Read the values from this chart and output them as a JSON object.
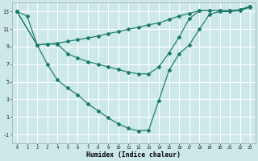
{
  "xlabel": "Humidex (Indice chaleur)",
  "bg_color": "#cce8e8",
  "grid_color": "#ffffff",
  "line_color": "#1a7a6a",
  "xlim": [
    -0.5,
    23.5
  ],
  "ylim": [
    -2.0,
    14.0
  ],
  "xticks": [
    0,
    1,
    2,
    3,
    4,
    5,
    6,
    7,
    8,
    9,
    10,
    11,
    12,
    13,
    14,
    15,
    16,
    17,
    18,
    19,
    20,
    21,
    22,
    23
  ],
  "yticks": [
    -1,
    1,
    3,
    5,
    7,
    9,
    11,
    13
  ],
  "curve_v_x": [
    0,
    1,
    2,
    3,
    4,
    5,
    6,
    7,
    8,
    9,
    10,
    11,
    12,
    13,
    14,
    15,
    16,
    17,
    18,
    19,
    20,
    21,
    22,
    23
  ],
  "curve_v_y": [
    13,
    12.5,
    9.2,
    7.0,
    5.2,
    4.3,
    3.5,
    2.5,
    1.7,
    0.9,
    0.2,
    -0.3,
    -0.6,
    -0.5,
    2.9,
    6.3,
    8.2,
    9.2,
    11.0,
    12.7,
    13.0,
    13.0,
    13.1,
    13.5
  ],
  "curve_top_x": [
    0,
    2,
    3,
    4,
    5,
    6,
    7,
    8,
    9,
    10,
    11,
    12,
    13,
    14,
    15,
    16,
    17,
    18,
    19,
    20,
    21,
    22,
    23
  ],
  "curve_top_y": [
    13,
    9.2,
    9.3,
    9.4,
    9.6,
    9.8,
    10.0,
    10.2,
    10.5,
    10.7,
    11.0,
    11.2,
    11.5,
    11.7,
    12.1,
    12.5,
    12.8,
    13.1,
    13.1,
    13.1,
    13.1,
    13.2,
    13.6
  ],
  "curve_mid_x": [
    0,
    2,
    3,
    4,
    5,
    6,
    7,
    8,
    9,
    10,
    11,
    12,
    13,
    14,
    15,
    16,
    17,
    18,
    19,
    20,
    21,
    22,
    23
  ],
  "curve_mid_y": [
    13,
    9.2,
    9.3,
    9.3,
    8.2,
    7.7,
    7.3,
    7.0,
    6.7,
    6.4,
    6.1,
    5.9,
    5.9,
    6.7,
    8.3,
    10.1,
    12.2,
    13.1,
    13.1,
    13.1,
    13.1,
    13.2,
    13.6
  ]
}
